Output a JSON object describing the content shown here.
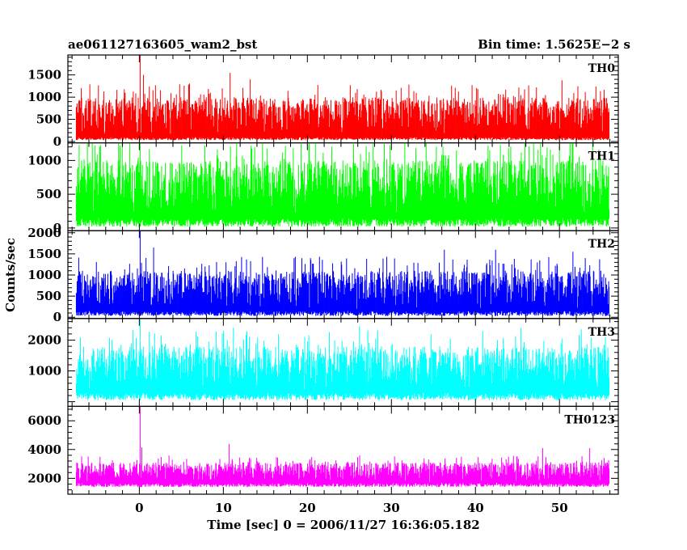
{
  "header": {
    "obs_id": "ae061127163605_wam2_bst",
    "bin_time": "Bin time: 1.5625E−2 s"
  },
  "axes": {
    "xlabel": "Time [sec] 0 = 2006/11/27 16:36:05.182",
    "ylabel": "Counts/sec"
  },
  "colors": {
    "TH0": "#ff0000",
    "TH1": "#00ff00",
    "TH2": "#0000ff",
    "TH3": "#00ffff",
    "TH0123": "#ff00ff"
  },
  "chart_data": {
    "type": "line",
    "title": "ae061127163605_wam2_bst",
    "xlabel": "Time [sec] 0 = 2006/11/27 16:36:05.182",
    "ylabel": "Counts/sec",
    "bin_time_s": 0.015625,
    "xlim": [
      -8.5,
      57
    ],
    "xticks": [
      0,
      10,
      20,
      30,
      40,
      50
    ],
    "data_x_range": [
      -7.5,
      55.9
    ],
    "grid": false,
    "legend": "none",
    "panels": [
      {
        "name": "TH0",
        "color": "#ff0000",
        "ylim": [
          -30,
          1950
        ],
        "yticks": [
          0,
          500,
          1000,
          1500
        ],
        "baseline": 30,
        "typical_low": 100,
        "typical_high": 1000,
        "spikes": [
          {
            "x": 0.1,
            "y": 1950
          },
          {
            "x": 10.8,
            "y": 1550
          },
          {
            "x": 0.5,
            "y": 1500
          },
          {
            "x": 13.2,
            "y": 1400
          },
          {
            "x": 50.3,
            "y": 1380
          }
        ]
      },
      {
        "name": "TH1",
        "color": "#00ff00",
        "ylim": [
          -40,
          1260
        ],
        "yticks": [
          0,
          500,
          1000
        ],
        "baseline": 20,
        "typical_low": 150,
        "typical_high": 1000,
        "spikes": [
          {
            "x": 0.1,
            "y": 1260
          },
          {
            "x": -2.3,
            "y": 1220
          },
          {
            "x": 7.8,
            "y": 1220
          },
          {
            "x": 27.0,
            "y": 1210
          },
          {
            "x": 44.2,
            "y": 1205
          }
        ]
      },
      {
        "name": "TH2",
        "color": "#0000ff",
        "ylim": [
          -30,
          2050
        ],
        "yticks": [
          0,
          500,
          1000,
          1500,
          2000
        ],
        "baseline": 30,
        "typical_low": 150,
        "typical_high": 1100,
        "spikes": [
          {
            "x": 0.1,
            "y": 2050
          },
          {
            "x": 1.7,
            "y": 1650
          },
          {
            "x": 36.3,
            "y": 1600
          },
          {
            "x": 42.4,
            "y": 1600
          },
          {
            "x": 51.6,
            "y": 1550
          }
        ]
      },
      {
        "name": "TH3",
        "color": "#00ffff",
        "ylim": [
          -150,
          2700
        ],
        "yticks": [
          1000,
          2000
        ],
        "baseline": 50,
        "typical_low": 300,
        "typical_high": 1800,
        "spikes": [
          {
            "x": 0.1,
            "y": 2700
          },
          {
            "x": 26.2,
            "y": 2450
          },
          {
            "x": 11.2,
            "y": 2400
          },
          {
            "x": 45.4,
            "y": 2400
          },
          {
            "x": 52.6,
            "y": 2350
          }
        ]
      },
      {
        "name": "TH0123",
        "color": "#ff00ff",
        "ylim": [
          900,
          7000
        ],
        "yticks": [
          2000,
          4000,
          6000
        ],
        "baseline": 1400,
        "typical_low": 1700,
        "typical_high": 3100,
        "spikes": [
          {
            "x": 0.1,
            "y": 7000
          },
          {
            "x": 10.7,
            "y": 4400
          },
          {
            "x": 0.3,
            "y": 4150
          },
          {
            "x": 48.0,
            "y": 4100
          },
          {
            "x": 53.6,
            "y": 4100
          }
        ]
      }
    ]
  }
}
